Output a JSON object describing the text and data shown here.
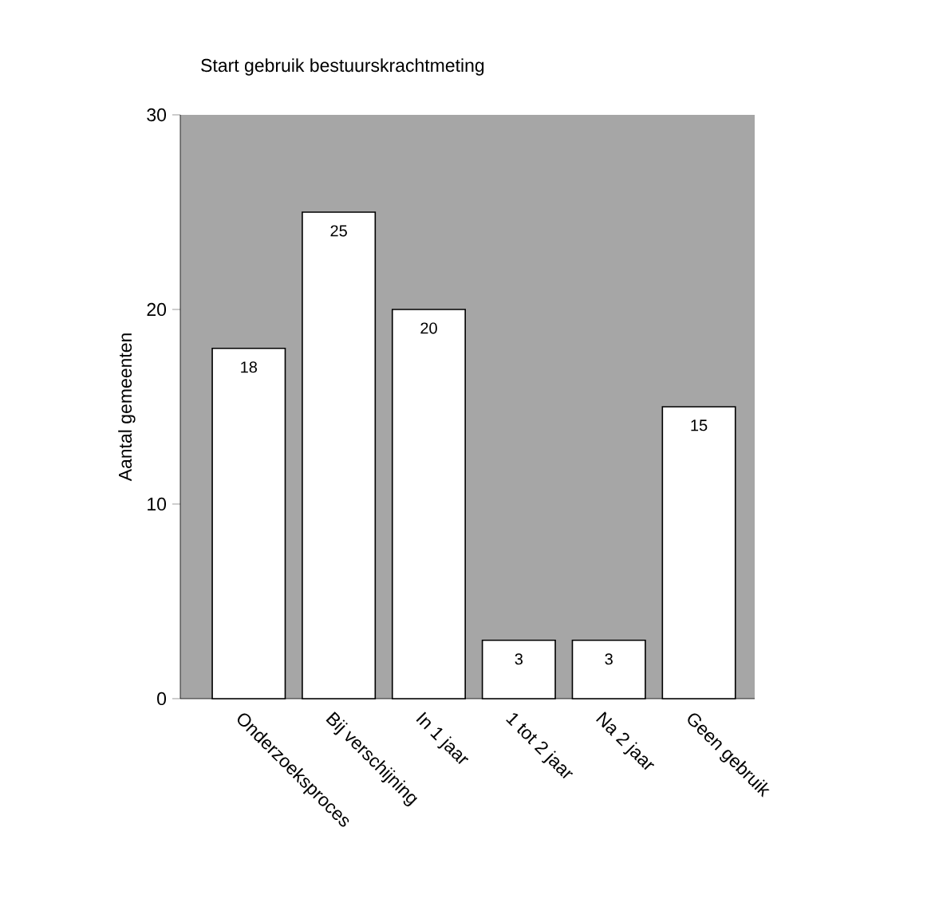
{
  "chart_data": {
    "type": "bar",
    "title": "Start gebruik bestuurskrachtmeting",
    "ylabel": "Aantal gemeenten",
    "categories": [
      "Onderzoeksproces",
      "Bij verschijning",
      "In 1 jaar",
      "1 tot 2 jaar",
      "Na 2 jaar",
      "Geen gebruik"
    ],
    "values": [
      18,
      25,
      20,
      3,
      3,
      15
    ],
    "color": "#ffffff",
    "ylim": [
      0,
      30
    ],
    "yticks": [
      0,
      10,
      20,
      30
    ],
    "data_labels": true,
    "grid": false
  }
}
